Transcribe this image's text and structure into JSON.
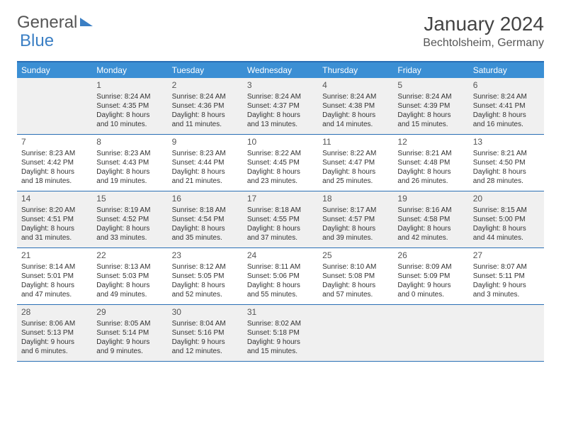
{
  "logo": {
    "part1": "General",
    "part2": "Blue"
  },
  "title": "January 2024",
  "location": "Bechtolsheim, Germany",
  "colors": {
    "header_bg": "#3b8fd4",
    "border": "#2a6fb5",
    "alt_bg": "#f0f0f0",
    "text": "#333333"
  },
  "day_headers": [
    "Sunday",
    "Monday",
    "Tuesday",
    "Wednesday",
    "Thursday",
    "Friday",
    "Saturday"
  ],
  "weeks": [
    [
      {
        "n": "",
        "sr": "",
        "ss": "",
        "d1": "",
        "d2": ""
      },
      {
        "n": "1",
        "sr": "Sunrise: 8:24 AM",
        "ss": "Sunset: 4:35 PM",
        "d1": "Daylight: 8 hours",
        "d2": "and 10 minutes."
      },
      {
        "n": "2",
        "sr": "Sunrise: 8:24 AM",
        "ss": "Sunset: 4:36 PM",
        "d1": "Daylight: 8 hours",
        "d2": "and 11 minutes."
      },
      {
        "n": "3",
        "sr": "Sunrise: 8:24 AM",
        "ss": "Sunset: 4:37 PM",
        "d1": "Daylight: 8 hours",
        "d2": "and 13 minutes."
      },
      {
        "n": "4",
        "sr": "Sunrise: 8:24 AM",
        "ss": "Sunset: 4:38 PM",
        "d1": "Daylight: 8 hours",
        "d2": "and 14 minutes."
      },
      {
        "n": "5",
        "sr": "Sunrise: 8:24 AM",
        "ss": "Sunset: 4:39 PM",
        "d1": "Daylight: 8 hours",
        "d2": "and 15 minutes."
      },
      {
        "n": "6",
        "sr": "Sunrise: 8:24 AM",
        "ss": "Sunset: 4:41 PM",
        "d1": "Daylight: 8 hours",
        "d2": "and 16 minutes."
      }
    ],
    [
      {
        "n": "7",
        "sr": "Sunrise: 8:23 AM",
        "ss": "Sunset: 4:42 PM",
        "d1": "Daylight: 8 hours",
        "d2": "and 18 minutes."
      },
      {
        "n": "8",
        "sr": "Sunrise: 8:23 AM",
        "ss": "Sunset: 4:43 PM",
        "d1": "Daylight: 8 hours",
        "d2": "and 19 minutes."
      },
      {
        "n": "9",
        "sr": "Sunrise: 8:23 AM",
        "ss": "Sunset: 4:44 PM",
        "d1": "Daylight: 8 hours",
        "d2": "and 21 minutes."
      },
      {
        "n": "10",
        "sr": "Sunrise: 8:22 AM",
        "ss": "Sunset: 4:45 PM",
        "d1": "Daylight: 8 hours",
        "d2": "and 23 minutes."
      },
      {
        "n": "11",
        "sr": "Sunrise: 8:22 AM",
        "ss": "Sunset: 4:47 PM",
        "d1": "Daylight: 8 hours",
        "d2": "and 25 minutes."
      },
      {
        "n": "12",
        "sr": "Sunrise: 8:21 AM",
        "ss": "Sunset: 4:48 PM",
        "d1": "Daylight: 8 hours",
        "d2": "and 26 minutes."
      },
      {
        "n": "13",
        "sr": "Sunrise: 8:21 AM",
        "ss": "Sunset: 4:50 PM",
        "d1": "Daylight: 8 hours",
        "d2": "and 28 minutes."
      }
    ],
    [
      {
        "n": "14",
        "sr": "Sunrise: 8:20 AM",
        "ss": "Sunset: 4:51 PM",
        "d1": "Daylight: 8 hours",
        "d2": "and 31 minutes."
      },
      {
        "n": "15",
        "sr": "Sunrise: 8:19 AM",
        "ss": "Sunset: 4:52 PM",
        "d1": "Daylight: 8 hours",
        "d2": "and 33 minutes."
      },
      {
        "n": "16",
        "sr": "Sunrise: 8:18 AM",
        "ss": "Sunset: 4:54 PM",
        "d1": "Daylight: 8 hours",
        "d2": "and 35 minutes."
      },
      {
        "n": "17",
        "sr": "Sunrise: 8:18 AM",
        "ss": "Sunset: 4:55 PM",
        "d1": "Daylight: 8 hours",
        "d2": "and 37 minutes."
      },
      {
        "n": "18",
        "sr": "Sunrise: 8:17 AM",
        "ss": "Sunset: 4:57 PM",
        "d1": "Daylight: 8 hours",
        "d2": "and 39 minutes."
      },
      {
        "n": "19",
        "sr": "Sunrise: 8:16 AM",
        "ss": "Sunset: 4:58 PM",
        "d1": "Daylight: 8 hours",
        "d2": "and 42 minutes."
      },
      {
        "n": "20",
        "sr": "Sunrise: 8:15 AM",
        "ss": "Sunset: 5:00 PM",
        "d1": "Daylight: 8 hours",
        "d2": "and 44 minutes."
      }
    ],
    [
      {
        "n": "21",
        "sr": "Sunrise: 8:14 AM",
        "ss": "Sunset: 5:01 PM",
        "d1": "Daylight: 8 hours",
        "d2": "and 47 minutes."
      },
      {
        "n": "22",
        "sr": "Sunrise: 8:13 AM",
        "ss": "Sunset: 5:03 PM",
        "d1": "Daylight: 8 hours",
        "d2": "and 49 minutes."
      },
      {
        "n": "23",
        "sr": "Sunrise: 8:12 AM",
        "ss": "Sunset: 5:05 PM",
        "d1": "Daylight: 8 hours",
        "d2": "and 52 minutes."
      },
      {
        "n": "24",
        "sr": "Sunrise: 8:11 AM",
        "ss": "Sunset: 5:06 PM",
        "d1": "Daylight: 8 hours",
        "d2": "and 55 minutes."
      },
      {
        "n": "25",
        "sr": "Sunrise: 8:10 AM",
        "ss": "Sunset: 5:08 PM",
        "d1": "Daylight: 8 hours",
        "d2": "and 57 minutes."
      },
      {
        "n": "26",
        "sr": "Sunrise: 8:09 AM",
        "ss": "Sunset: 5:09 PM",
        "d1": "Daylight: 9 hours",
        "d2": "and 0 minutes."
      },
      {
        "n": "27",
        "sr": "Sunrise: 8:07 AM",
        "ss": "Sunset: 5:11 PM",
        "d1": "Daylight: 9 hours",
        "d2": "and 3 minutes."
      }
    ],
    [
      {
        "n": "28",
        "sr": "Sunrise: 8:06 AM",
        "ss": "Sunset: 5:13 PM",
        "d1": "Daylight: 9 hours",
        "d2": "and 6 minutes."
      },
      {
        "n": "29",
        "sr": "Sunrise: 8:05 AM",
        "ss": "Sunset: 5:14 PM",
        "d1": "Daylight: 9 hours",
        "d2": "and 9 minutes."
      },
      {
        "n": "30",
        "sr": "Sunrise: 8:04 AM",
        "ss": "Sunset: 5:16 PM",
        "d1": "Daylight: 9 hours",
        "d2": "and 12 minutes."
      },
      {
        "n": "31",
        "sr": "Sunrise: 8:02 AM",
        "ss": "Sunset: 5:18 PM",
        "d1": "Daylight: 9 hours",
        "d2": "and 15 minutes."
      },
      {
        "n": "",
        "sr": "",
        "ss": "",
        "d1": "",
        "d2": ""
      },
      {
        "n": "",
        "sr": "",
        "ss": "",
        "d1": "",
        "d2": ""
      },
      {
        "n": "",
        "sr": "",
        "ss": "",
        "d1": "",
        "d2": ""
      }
    ]
  ]
}
